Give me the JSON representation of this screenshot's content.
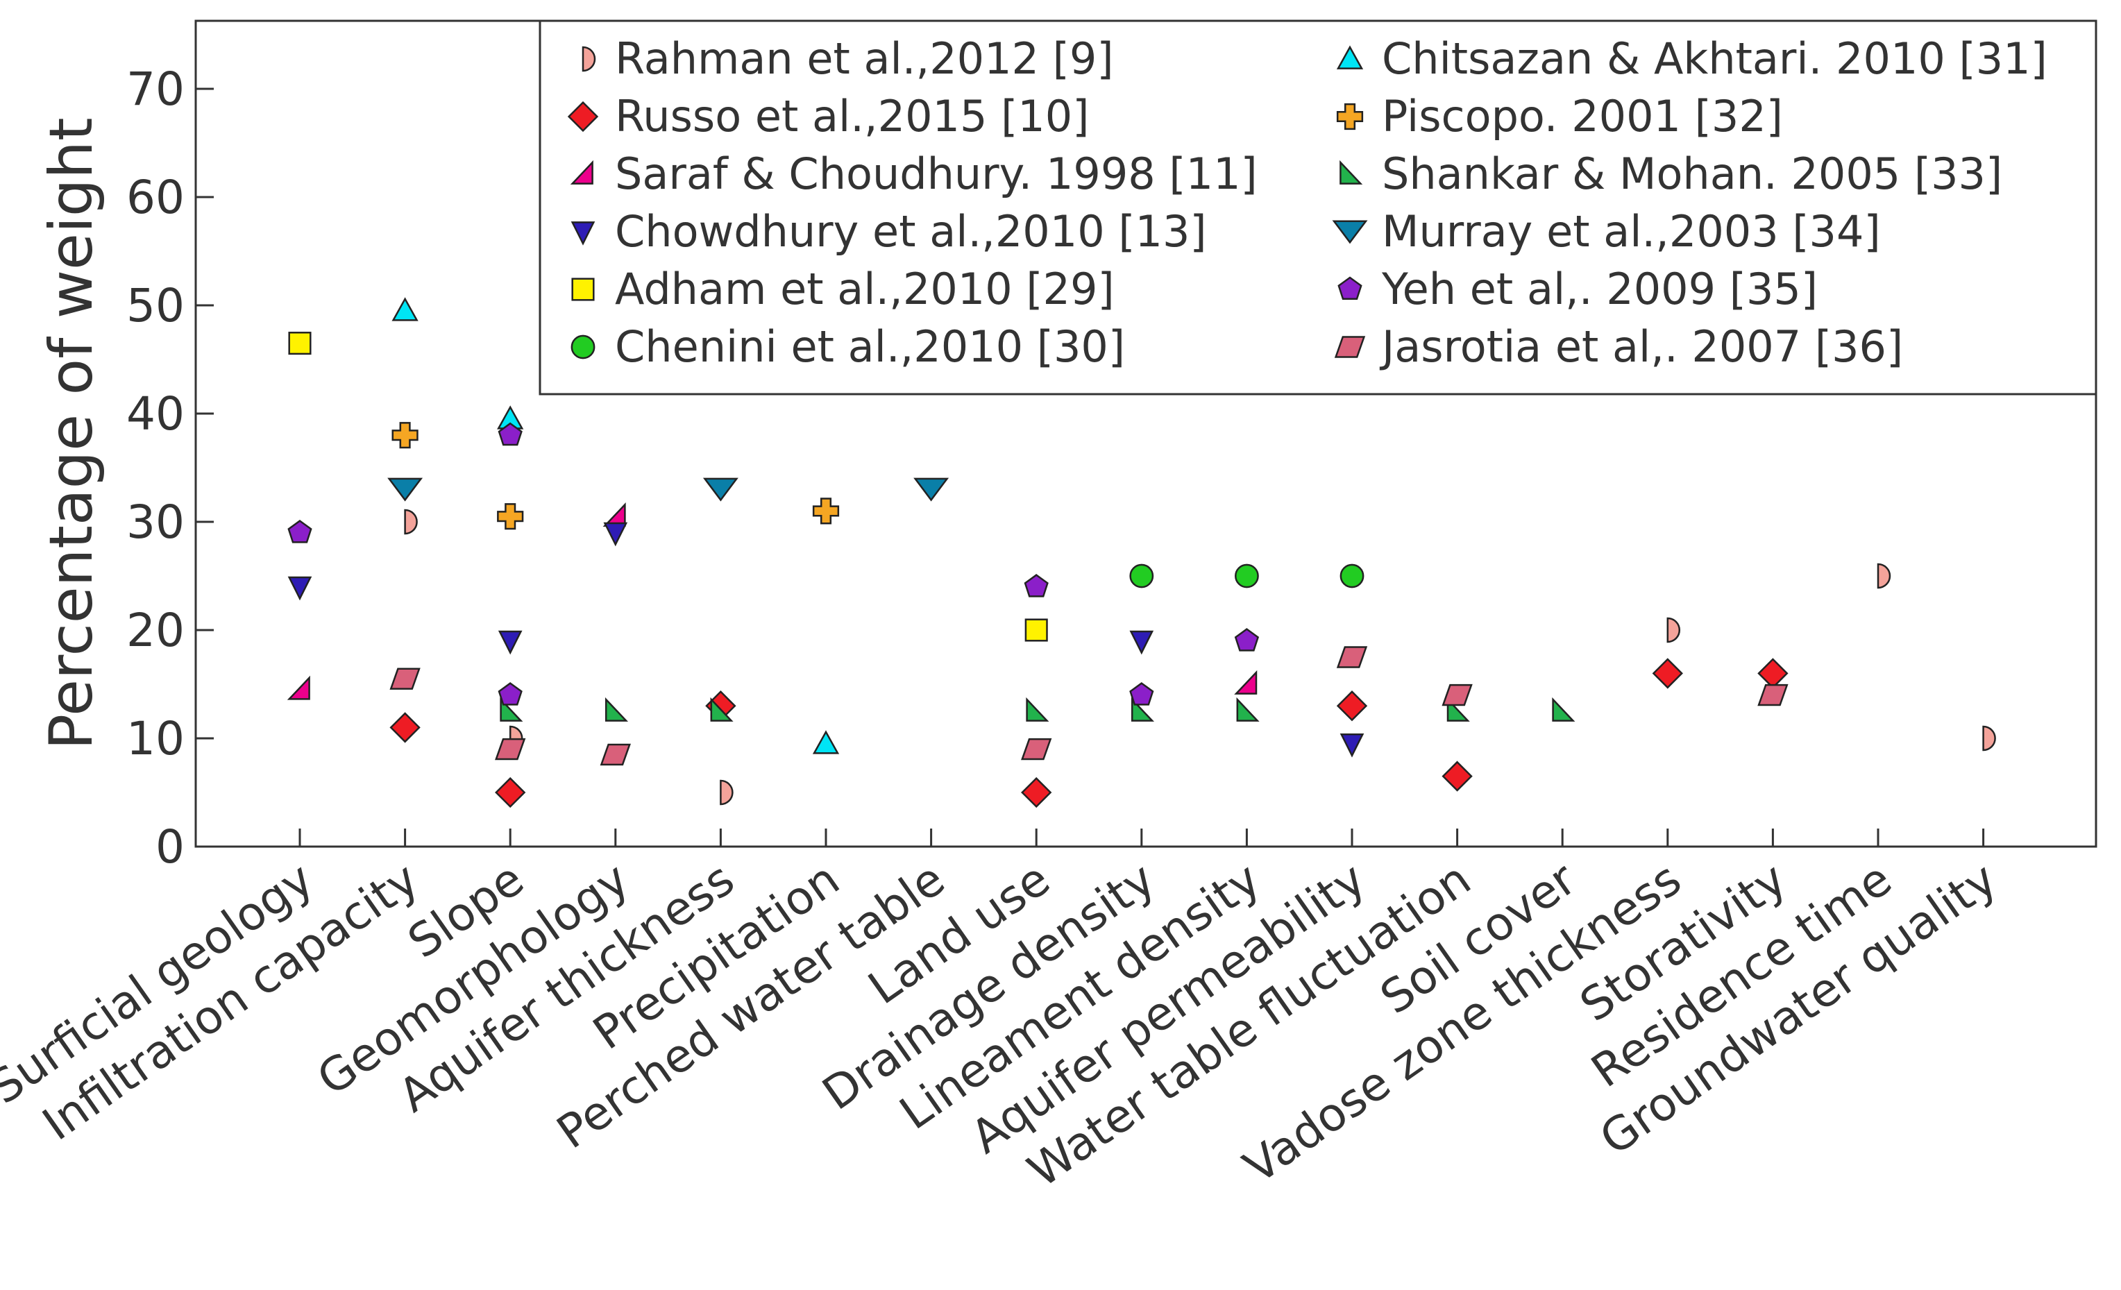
{
  "chart_data": {
    "type": "scatter",
    "title": "",
    "xlabel": "",
    "ylabel": "Percentage of weight",
    "ylim": [
      0,
      75
    ],
    "yticks": [
      0,
      10,
      20,
      30,
      40,
      50,
      60,
      70
    ],
    "grid": false,
    "legend_position": "top-right",
    "categories": [
      "Surficial geology",
      "Infiltration capacity",
      "Slope",
      "Geomorphology",
      "Aquifer thickness",
      "Precipitation",
      "Perched water table",
      "Land use",
      "Drainage density",
      "Lineament density",
      "Aquifer permeability",
      "Water table fluctuation",
      "Soil cover",
      "Vadose zone thickness",
      "Storativity",
      "Residence time",
      "Groundwater quality"
    ],
    "series": [
      {
        "name": "Rahman et al.,2012",
        "ref": "[9]",
        "marker": "half-circle",
        "color": "#f4a39a",
        "points": [
          [
            "Infiltration capacity",
            30
          ],
          [
            "Slope",
            10
          ],
          [
            "Aquifer thickness",
            5
          ],
          [
            "Vadose zone thickness",
            20
          ],
          [
            "Residence time",
            25
          ],
          [
            "Groundwater quality",
            10
          ]
        ]
      },
      {
        "name": "Russo et al.,2015",
        "ref": "[10]",
        "marker": "diamond",
        "color": "#ee1c24",
        "points": [
          [
            "Infiltration capacity",
            11
          ],
          [
            "Slope",
            5
          ],
          [
            "Aquifer thickness",
            13
          ],
          [
            "Land use",
            5
          ],
          [
            "Aquifer permeability",
            13
          ],
          [
            "Water table fluctuation",
            6.5
          ],
          [
            "Vadose zone thickness",
            16
          ],
          [
            "Storativity",
            16
          ]
        ]
      },
      {
        "name": "Saraf & Choudhury. 1998",
        "ref": "[11]",
        "marker": "triangle-right-angle",
        "color": "#ec008c",
        "points": [
          [
            "Surficial geology",
            14.5
          ],
          [
            "Geomorphology",
            30.5
          ],
          [
            "Lineament density",
            15
          ]
        ]
      },
      {
        "name": "Chowdhury et al.,2010",
        "ref": "[13]",
        "marker": "triangle-down",
        "color": "#2e1cb5",
        "points": [
          [
            "Surficial geology",
            24
          ],
          [
            "Slope",
            19
          ],
          [
            "Geomorphology",
            29
          ],
          [
            "Drainage density",
            19
          ],
          [
            "Aquifer permeability",
            9.5
          ]
        ]
      },
      {
        "name": "Adham et al.,2010",
        "ref": "[29]",
        "marker": "square",
        "color": "#fff200",
        "points": [
          [
            "Surficial geology",
            46.5
          ],
          [
            "Land use",
            20
          ]
        ]
      },
      {
        "name": "Chenini et al.,2010",
        "ref": "[30]",
        "marker": "circle",
        "color": "#22cc22",
        "points": [
          [
            "Drainage density",
            25
          ],
          [
            "Lineament density",
            25
          ],
          [
            "Aquifer permeability",
            25
          ]
        ]
      },
      {
        "name": "Chitsazan & Akhtari. 2010",
        "ref": "[31]",
        "marker": "triangle-up",
        "color": "#00e5f5",
        "points": [
          [
            "Infiltration capacity",
            49.5
          ],
          [
            "Slope",
            39.5
          ],
          [
            "Precipitation",
            9.5
          ]
        ]
      },
      {
        "name": "Piscopo. 2001",
        "ref": "[32]",
        "marker": "plus",
        "color": "#f5a623",
        "points": [
          [
            "Infiltration capacity",
            38
          ],
          [
            "Slope",
            30.5
          ],
          [
            "Precipitation",
            31
          ]
        ]
      },
      {
        "name": "Shankar & Mohan. 2005",
        "ref": "[33]",
        "marker": "triangle-left-angle",
        "color": "#22b24c",
        "points": [
          [
            "Slope",
            12.5
          ],
          [
            "Geomorphology",
            12.5
          ],
          [
            "Aquifer thickness",
            12.5
          ],
          [
            "Land use",
            12.5
          ],
          [
            "Drainage density",
            12.5
          ],
          [
            "Lineament density",
            12.5
          ],
          [
            "Water table fluctuation",
            12.5
          ],
          [
            "Soil cover",
            12.5
          ]
        ]
      },
      {
        "name": "Murray et al.,2003",
        "ref": "[34]",
        "marker": "triangle-down-wide",
        "color": "#0a7fa8",
        "points": [
          [
            "Infiltration capacity",
            33
          ],
          [
            "Aquifer thickness",
            33
          ],
          [
            "Perched water table",
            33
          ]
        ]
      },
      {
        "name": "Yeh et al,. 2009",
        "ref": "[35]",
        "marker": "pentagon",
        "color": "#8b1fc9",
        "points": [
          [
            "Surficial geology",
            29
          ],
          [
            "Slope",
            38
          ],
          [
            "Slope",
            14
          ],
          [
            "Land use",
            24
          ],
          [
            "Drainage density",
            14
          ],
          [
            "Lineament density",
            19
          ]
        ]
      },
      {
        "name": "Jasrotia et al,. 2007",
        "ref": "[36]",
        "marker": "parallelogram",
        "color": "#d9607a",
        "points": [
          [
            "Infiltration capacity",
            15.5
          ],
          [
            "Slope",
            9
          ],
          [
            "Geomorphology",
            8.5
          ],
          [
            "Land use",
            9
          ],
          [
            "Aquifer permeability",
            17.5
          ],
          [
            "Water table fluctuation",
            14
          ],
          [
            "Storativity",
            14
          ]
        ]
      }
    ]
  }
}
